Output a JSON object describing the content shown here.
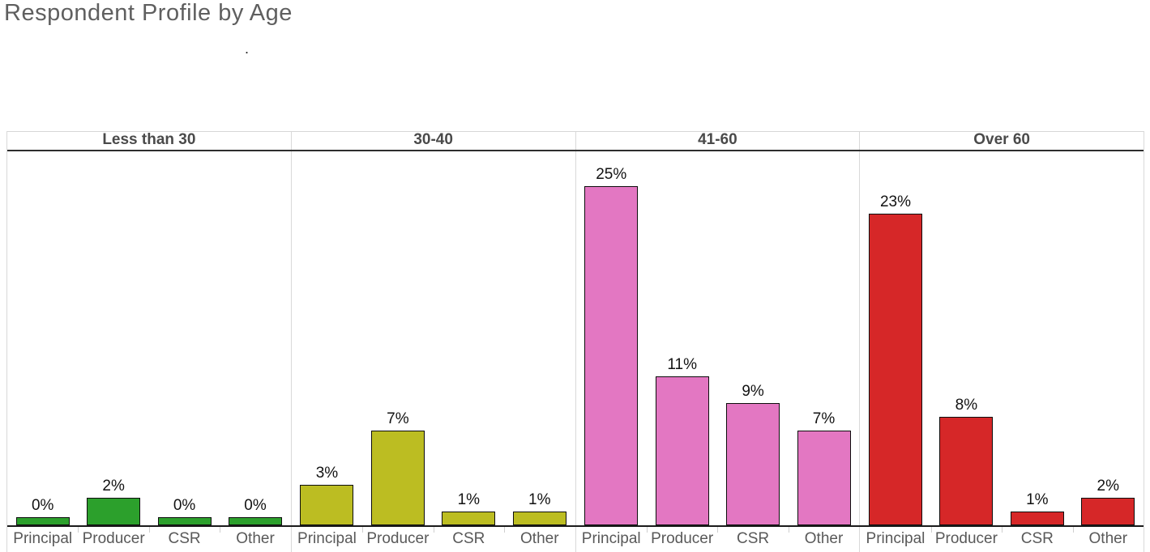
{
  "title": "Respondent Profile by Age",
  "stray_dot": ".",
  "chart_data": {
    "type": "bar",
    "title": "Respondent Profile by Age",
    "value_suffix": "%",
    "categories": [
      "Principal",
      "Producer",
      "CSR",
      "Other"
    ],
    "groups": [
      {
        "label": "Less than 30",
        "color": "#2ca02c",
        "values": [
          0,
          2,
          0,
          0
        ],
        "labels": [
          "0%",
          "2%",
          "0%",
          "0%"
        ]
      },
      {
        "label": "30-40",
        "color": "#bcbd22",
        "values": [
          3,
          7,
          1,
          1
        ],
        "labels": [
          "3%",
          "7%",
          "1%",
          "1%"
        ]
      },
      {
        "label": "41-60",
        "color": "#e377c2",
        "values": [
          25,
          11,
          9,
          7
        ],
        "labels": [
          "25%",
          "11%",
          "9%",
          "7%"
        ]
      },
      {
        "label": "Over 60",
        "color": "#d62728",
        "values": [
          23,
          8,
          1,
          2
        ],
        "labels": [
          "23%",
          "8%",
          "1%",
          "2%"
        ]
      }
    ],
    "ylim": [
      0,
      27
    ],
    "grid": false,
    "legend": "none",
    "bar_edge_color": "#0d0d0d",
    "layout": "faceted-by-age-group, data labels above bars, category labels on x axis"
  }
}
